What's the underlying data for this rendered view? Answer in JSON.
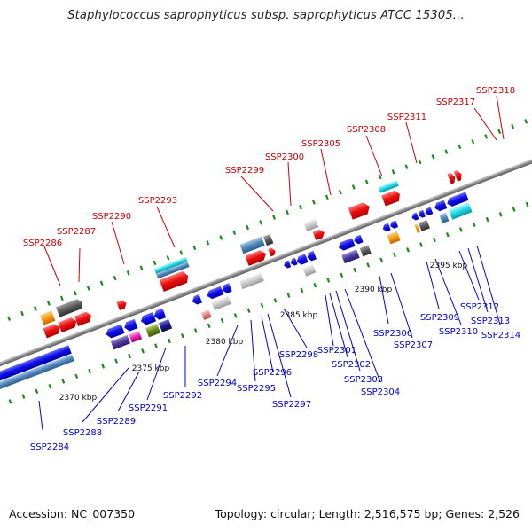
{
  "title": "Staphylococcus saprophyticus subsp. saprophyticus ATCC 15305...",
  "footer": {
    "accession": "Accession: NC_007350",
    "summary": "Topology: circular; Length: 2,516,575 bp; Genes: 2,526"
  },
  "colors": {
    "forward_label": "#cc0000",
    "reverse_label": "#0000cc",
    "ticks": "#1a8a1a",
    "backbone": "#8c8c8c"
  },
  "scale_labels": [
    "2370 kbp",
    "2375 kbp",
    "2380 kbp",
    "2385 kbp",
    "2390 kbp",
    "2395 kbp"
  ],
  "forward_gene_labels": [
    "SSP2286",
    "SSP2287",
    "SSP2290",
    "SSP2293",
    "SSP2299",
    "SSP2300",
    "SSP2305",
    "SSP2308",
    "SSP2311",
    "SSP2317",
    "SSP2318"
  ],
  "reverse_gene_labels": [
    "SSP2284",
    "SSP2288",
    "SSP2289",
    "SSP2291",
    "SSP2292",
    "SSP2294",
    "SSP2295",
    "SSP2296",
    "SSP2297",
    "SSP2298",
    "SSP2301",
    "SSP2302",
    "SSP2303",
    "SSP2304",
    "SSP2306",
    "SSP2307",
    "SSP2309",
    "SSP2310",
    "SSP2312",
    "SSP2313",
    "SSP2314"
  ]
}
